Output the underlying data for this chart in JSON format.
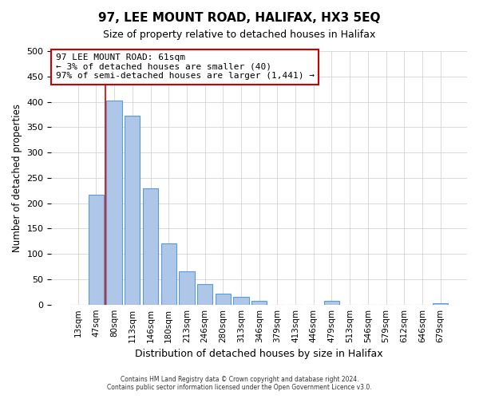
{
  "title": "97, LEE MOUNT ROAD, HALIFAX, HX3 5EQ",
  "subtitle": "Size of property relative to detached houses in Halifax",
  "xlabel": "Distribution of detached houses by size in Halifax",
  "ylabel": "Number of detached properties",
  "bar_labels": [
    "13sqm",
    "47sqm",
    "80sqm",
    "113sqm",
    "146sqm",
    "180sqm",
    "213sqm",
    "246sqm",
    "280sqm",
    "313sqm",
    "346sqm",
    "379sqm",
    "413sqm",
    "446sqm",
    "479sqm",
    "513sqm",
    "546sqm",
    "579sqm",
    "612sqm",
    "646sqm",
    "679sqm"
  ],
  "bar_heights": [
    0,
    216,
    403,
    373,
    230,
    120,
    65,
    40,
    22,
    15,
    7,
    0,
    0,
    0,
    8,
    0,
    0,
    0,
    0,
    0,
    2
  ],
  "bar_color": "#aec6e8",
  "bar_edge_color": "#5b9bd5",
  "vline_x": 1.5,
  "vline_color": "#cc0000",
  "ylim": [
    0,
    500
  ],
  "yticks": [
    0,
    50,
    100,
    150,
    200,
    250,
    300,
    350,
    400,
    450,
    500
  ],
  "annotation_line1": "97 LEE MOUNT ROAD: 61sqm",
  "annotation_line2": "← 3% of detached houses are smaller (40)",
  "annotation_line3": "97% of semi-detached houses are larger (1,441) →",
  "annotation_box_color": "#ffffff",
  "annotation_box_edge": "#cc0000",
  "footer_line1": "Contains HM Land Registry data © Crown copyright and database right 2024.",
  "footer_line2": "Contains public sector information licensed under the Open Government Licence v3.0.",
  "bg_color": "#ffffff",
  "grid_color": "#cccccc"
}
